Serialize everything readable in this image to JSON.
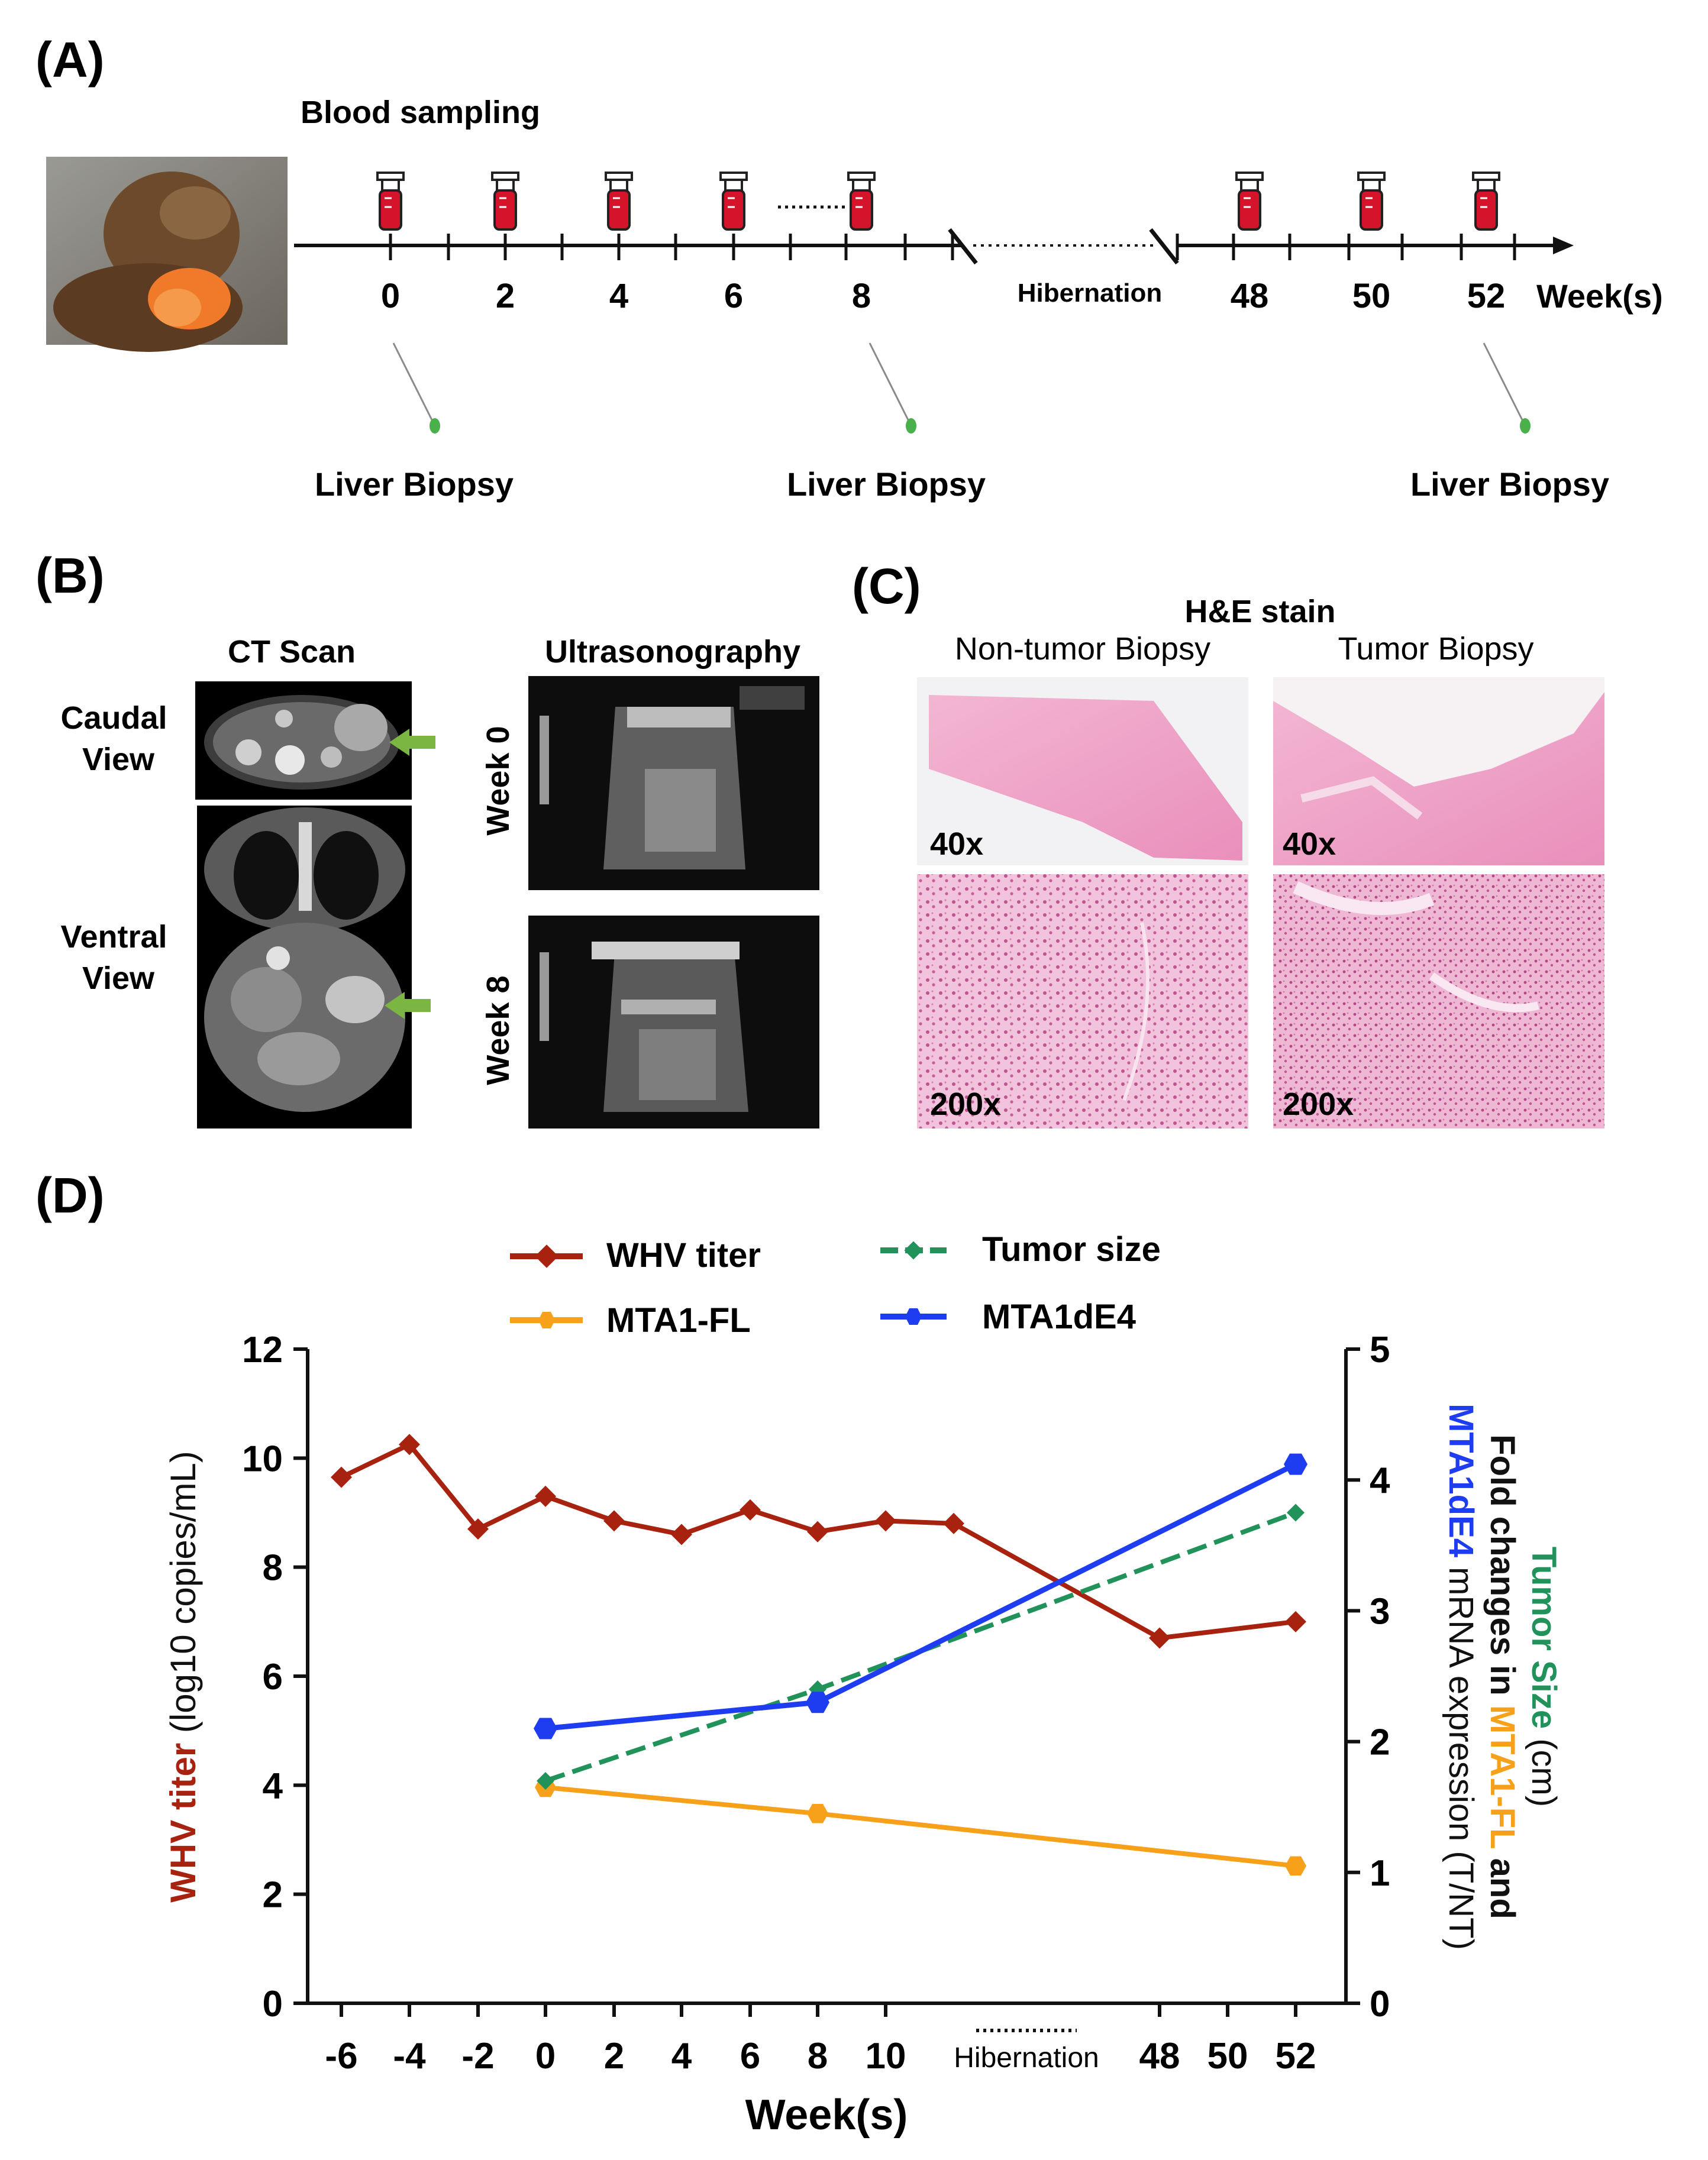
{
  "panelA": {
    "label": "(A)",
    "blood_sampling": "Blood sampling",
    "weeks": [
      "0",
      "2",
      "4",
      "6",
      "8",
      "48",
      "50",
      "52"
    ],
    "unit": "Week(s)",
    "hibernation": "Hibernation",
    "biopsies": [
      "Liver Biopsy",
      "Liver Biopsy",
      "Liver Biopsy"
    ],
    "photo_desc": "woodchuck"
  },
  "panelB": {
    "label": "(B)",
    "ct_title": "CT Scan",
    "ultra_title": "Ultrasonography",
    "caudal": [
      "Caudal",
      "View"
    ],
    "ventral": [
      "Ventral",
      "View"
    ],
    "week0": "Week 0",
    "week8": "Week 8"
  },
  "panelC": {
    "label": "(C)",
    "title": "H&E stain",
    "col1": "Non-tumor Biopsy",
    "col2": "Tumor Biopsy",
    "mag": [
      "40x",
      "40x",
      "200x",
      "200x"
    ]
  },
  "panelD": {
    "label": "(D)"
  },
  "chart_data": {
    "type": "line",
    "xlabel": "Week(s)",
    "x_ticks": [
      "-6",
      "-4",
      "-2",
      "0",
      "2",
      "4",
      "6",
      "8",
      "10",
      "48",
      "50",
      "52"
    ],
    "x_break_label": "Hibernation",
    "ylabel_left": [
      "WHV titer",
      " (log10 copies/mL)"
    ],
    "ylim_left": [
      0,
      12
    ],
    "yticks_left": [
      "0",
      "2",
      "4",
      "6",
      "8",
      "10",
      "12"
    ],
    "ylim_right": [
      0,
      5
    ],
    "yticks_right": [
      "0",
      "1",
      "2",
      "3",
      "4",
      "5"
    ],
    "ylabel_right_line1": [
      "Tumor Size",
      " (cm)"
    ],
    "ylabel_right_line2": [
      "Fold changes in ",
      "MTA1-FL",
      " and"
    ],
    "ylabel_right_line3": [
      "MTA1dE4",
      " mRNA expression (T/NT)"
    ],
    "colors": {
      "whv": "#a8230f",
      "fl": "#f7a01a",
      "tumor": "#21925a",
      "de4": "#1f3df0"
    },
    "legend": [
      "WHV titer",
      "MTA1-FL",
      "Tumor size",
      "MTA1dE4"
    ],
    "series": [
      {
        "name": "WHV titer",
        "axis": "left",
        "x": [
          "-6",
          "-4",
          "-2",
          "0",
          "2",
          "4",
          "6",
          "8",
          "10",
          "10b",
          "48",
          "52"
        ],
        "values": [
          9.65,
          10.25,
          8.7,
          9.3,
          8.85,
          8.6,
          9.05,
          8.65,
          8.85,
          8.8,
          6.7,
          7.0
        ]
      },
      {
        "name": "MTA1-FL",
        "axis": "right",
        "x": [
          "0",
          "8",
          "52"
        ],
        "values": [
          1.65,
          1.45,
          1.05
        ]
      },
      {
        "name": "Tumor size",
        "axis": "right",
        "x": [
          "0",
          "8",
          "52"
        ],
        "values": [
          1.7,
          2.4,
          3.75
        ]
      },
      {
        "name": "MTA1dE4",
        "axis": "right",
        "x": [
          "0",
          "8",
          "52"
        ],
        "values": [
          2.1,
          2.3,
          4.12
        ]
      }
    ]
  }
}
